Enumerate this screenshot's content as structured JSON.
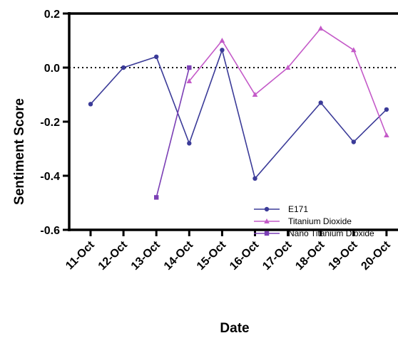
{
  "chart_data": {
    "type": "line",
    "xlabel": "Date",
    "ylabel": "Sentiment Score",
    "ylim": [
      -0.6,
      0.2
    ],
    "yticks": [
      0.2,
      0.0,
      -0.2,
      -0.4,
      -0.6
    ],
    "ytick_labels": [
      "0.2",
      "0.0",
      "-0.2",
      "-0.4",
      "-0.6"
    ],
    "categories": [
      "11-Oct",
      "12-Oct",
      "13-Oct",
      "14-Oct",
      "15-Oct",
      "16-Oct",
      "17-Oct",
      "18-Oct",
      "19-Oct",
      "20-Oct"
    ],
    "reference_line": {
      "y": 0.0,
      "style": "dotted"
    },
    "legend_position": "bottom-right",
    "series": [
      {
        "name": "E171",
        "color": "#3b3b98",
        "marker": "circle",
        "values": [
          -0.135,
          0.0,
          0.04,
          -0.28,
          0.065,
          -0.41,
          null,
          -0.13,
          -0.275,
          -0.155
        ]
      },
      {
        "name": "Titanium Dioxide",
        "color": "#c45ac8",
        "marker": "triangle",
        "values": [
          null,
          null,
          null,
          -0.05,
          0.1,
          -0.1,
          0.0,
          0.145,
          0.065,
          -0.25
        ]
      },
      {
        "name": "Nano Titanium Dioxide",
        "color": "#7b3fb5",
        "marker": "square",
        "values": [
          null,
          null,
          -0.48,
          0.0,
          null,
          null,
          null,
          null,
          null,
          null
        ]
      }
    ]
  }
}
